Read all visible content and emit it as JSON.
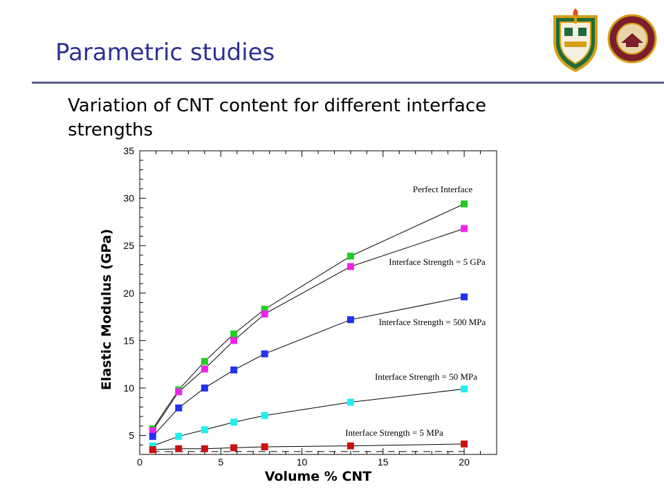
{
  "slide": {
    "title": "Parametric studies",
    "subtitle": "Variation of CNT content for different interface strengths"
  },
  "logos": [
    {
      "name": "college-crest-logo",
      "icon": "shield-crest-with-torch",
      "colors": [
        "#1e6b3a",
        "#d4a017",
        "#b71c1c"
      ]
    },
    {
      "name": "university-seal-logo",
      "icon": "circular-seal",
      "text": "FLORIDA STATE UNIVERSITY 1857",
      "colors": [
        "#7a1f2b",
        "#d4a017"
      ]
    }
  ],
  "chart_data": {
    "type": "line",
    "title": "",
    "xlabel": "Volume % CNT",
    "ylabel": "Elastic Modulus (GPa)",
    "xlim": [
      0,
      22
    ],
    "ylim": [
      3,
      35
    ],
    "xticks": [
      0,
      5,
      10,
      15,
      20
    ],
    "yticks": [
      5,
      10,
      15,
      20,
      25,
      30,
      35
    ],
    "x": [
      0.8,
      2.4,
      4.0,
      5.8,
      7.7,
      13.0,
      20.0
    ],
    "grid": false,
    "legend": "none",
    "series": [
      {
        "name": "Perfect Interface",
        "color": "#22cc22",
        "values": [
          5.7,
          9.8,
          12.8,
          15.7,
          18.3,
          23.9,
          29.4
        ]
      },
      {
        "name": "Interface Strength = 5 GPa",
        "color": "#ee22ee",
        "values": [
          5.5,
          9.6,
          12.0,
          15.0,
          17.8,
          22.8,
          26.8
        ]
      },
      {
        "name": "Interface Strength = 500 MPa",
        "color": "#2233ee",
        "values": [
          4.9,
          7.9,
          10.0,
          11.9,
          13.6,
          17.2,
          19.6
        ]
      },
      {
        "name": "Interface Strength = 50 MPa",
        "color": "#22eeee",
        "values": [
          3.9,
          4.9,
          5.6,
          6.4,
          7.1,
          8.5,
          9.9
        ]
      },
      {
        "name": "Interface Strength = 5 MPa",
        "color": "#cc1111",
        "values": [
          3.5,
          3.6,
          3.6,
          3.7,
          3.8,
          3.9,
          4.1
        ]
      }
    ]
  }
}
